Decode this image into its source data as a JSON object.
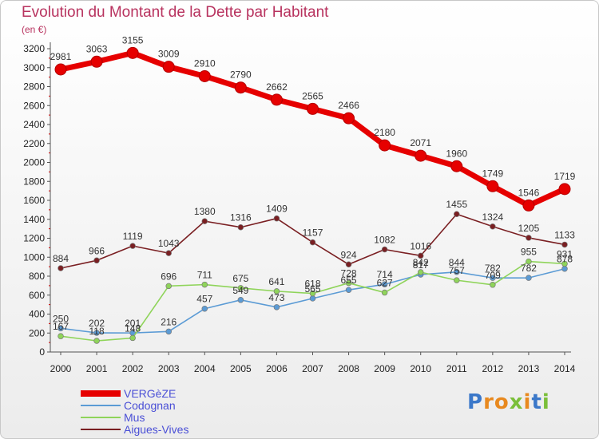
{
  "header": {
    "title": "Evolution du Montant de la Dette par Habitant",
    "unit": "(en €)"
  },
  "logo": {
    "text": "Proxiti",
    "letter_colors": [
      "#3b78c9",
      "#e8891f",
      "#e8891f",
      "#7bbf3a",
      "#e8891f",
      "#3b78c9",
      "#7bbf3a"
    ]
  },
  "chart_data": {
    "type": "line",
    "x": [
      2000,
      2001,
      2002,
      2003,
      2004,
      2005,
      2006,
      2007,
      2008,
      2009,
      2010,
      2011,
      2012,
      2013,
      2014
    ],
    "ylim": [
      0,
      3200
    ],
    "yticks": [
      0,
      200,
      400,
      600,
      800,
      1000,
      1200,
      1400,
      1600,
      1800,
      2000,
      2200,
      2400,
      2600,
      2800,
      3000,
      3200
    ],
    "grid": false,
    "legend": "bottom-left",
    "series": [
      {
        "name": "VERGèZE",
        "color": "#e60000",
        "values": [
          2981,
          3063,
          3155,
          3009,
          2910,
          2790,
          2662,
          2565,
          2466,
          2180,
          2071,
          1960,
          1749,
          1546,
          1719
        ]
      },
      {
        "name": "Codognan",
        "color": "#5b9bd5",
        "values": [
          250,
          202,
          201,
          216,
          457,
          549,
          473,
          565,
          655,
          714,
          817,
          844,
          782,
          782,
          878
        ]
      },
      {
        "name": "Mus",
        "color": "#8fd45a",
        "values": [
          167,
          118,
          148,
          696,
          711,
          675,
          641,
          618,
          728,
          627,
          842,
          757,
          709,
          955,
          931
        ]
      },
      {
        "name": "Aigues-Vives",
        "color": "#7a1f22",
        "values": [
          884,
          966,
          1119,
          1043,
          1380,
          1316,
          1409,
          1157,
          924,
          1082,
          1016,
          1455,
          1324,
          1205,
          1133
        ]
      }
    ]
  }
}
